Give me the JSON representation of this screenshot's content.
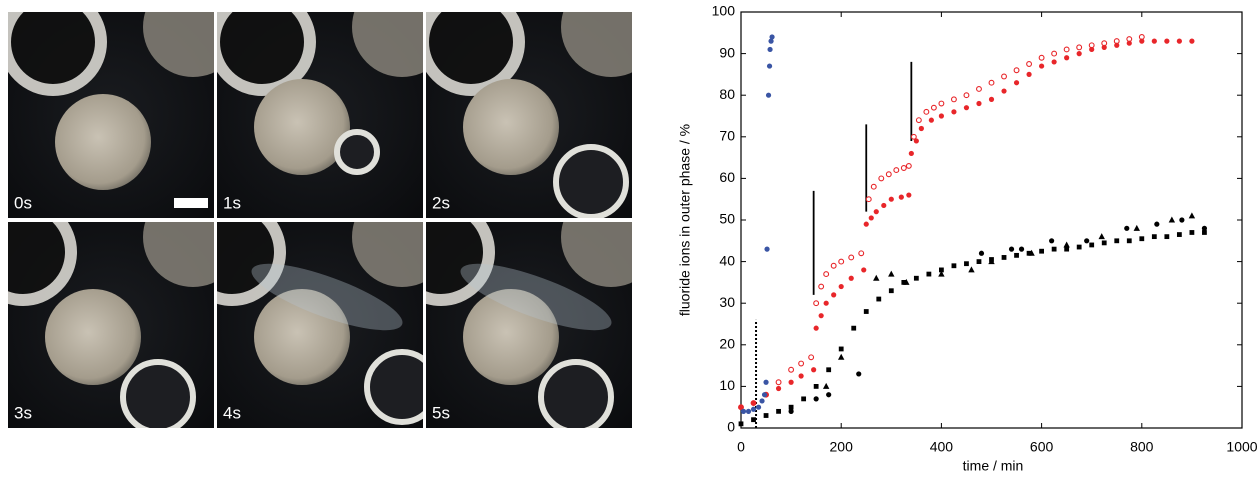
{
  "panels": [
    "0s",
    "1s",
    "2s",
    "3s",
    "4s",
    "5s"
  ],
  "chart_data": {
    "type": "scatter",
    "xlabel": "time / min",
    "ylabel": "fluoride ions in outer phase / %",
    "xlim": [
      0,
      1000
    ],
    "xticks": [
      0,
      200,
      400,
      600,
      800,
      1000
    ],
    "ylim": [
      0,
      100
    ],
    "yticks": [
      0,
      10,
      20,
      30,
      40,
      50,
      60,
      70,
      80,
      90,
      100
    ],
    "series": [
      {
        "color": "#e8262a",
        "marker": "circle-open",
        "x": [
          0,
          25,
          50,
          75,
          100,
          120,
          140,
          150,
          160,
          170,
          185,
          200,
          220,
          240,
          255,
          265,
          280,
          295,
          310,
          325,
          335,
          345,
          355,
          370,
          385,
          400,
          425,
          450,
          475,
          500,
          525,
          550,
          575,
          600,
          625,
          650,
          675,
          700,
          725,
          750,
          775,
          800
        ],
        "values": [
          5,
          6,
          8,
          11,
          14,
          15.5,
          17,
          30,
          34,
          37,
          39,
          40,
          41,
          42,
          55,
          58,
          60,
          61,
          62,
          62.5,
          63,
          70,
          74,
          76,
          77,
          78,
          79,
          80,
          81.5,
          83,
          84.5,
          86,
          87.5,
          89,
          90,
          91,
          91.5,
          92,
          92.5,
          93,
          93.5,
          94
        ]
      },
      {
        "color": "#e8262a",
        "marker": "circle-filled",
        "x": [
          0,
          25,
          50,
          75,
          100,
          120,
          145,
          150,
          160,
          170,
          185,
          200,
          220,
          245,
          250,
          260,
          270,
          285,
          300,
          320,
          335,
          340,
          350,
          360,
          380,
          400,
          425,
          450,
          475,
          500,
          525,
          550,
          575,
          600,
          625,
          650,
          675,
          700,
          725,
          750,
          775,
          800,
          825,
          850,
          875,
          900
        ],
        "values": [
          5,
          6,
          8,
          9.5,
          11,
          12.5,
          14,
          24,
          27,
          30,
          32,
          34,
          36,
          38,
          49,
          50.5,
          52,
          53.5,
          55,
          55.5,
          56,
          66,
          69,
          72,
          74,
          75,
          76,
          77,
          78,
          79,
          81,
          83,
          85,
          87,
          88,
          89,
          90,
          91,
          91.5,
          92,
          92.5,
          93,
          93,
          93,
          93,
          93
        ]
      },
      {
        "color": "#000000",
        "marker": "square",
        "x": [
          0,
          25,
          50,
          75,
          100,
          125,
          150,
          175,
          200,
          225,
          250,
          275,
          300,
          325,
          350,
          375,
          400,
          425,
          450,
          475,
          500,
          525,
          550,
          575,
          600,
          625,
          650,
          675,
          700,
          725,
          750,
          775,
          800,
          825,
          850,
          875,
          900,
          925
        ],
        "values": [
          1,
          2,
          3,
          4,
          5,
          7,
          10,
          14,
          19,
          24,
          28,
          31,
          33,
          35,
          36,
          37,
          38,
          39,
          39.5,
          40,
          40.5,
          41,
          41.5,
          42,
          42.5,
          43,
          43,
          43.5,
          44,
          44.5,
          45,
          45,
          45.5,
          46,
          46,
          46.5,
          47,
          47
        ]
      },
      {
        "color": "#000000",
        "marker": "circle-filled",
        "x": [
          100,
          150,
          175,
          235,
          480,
          540,
          560,
          620,
          690,
          770,
          830,
          880,
          925
        ],
        "values": [
          4,
          7,
          8,
          13,
          42,
          43,
          43,
          45,
          45,
          48,
          49,
          50,
          48
        ]
      },
      {
        "color": "#000000",
        "marker": "triangle",
        "x": [
          170,
          200,
          270,
          300,
          330,
          400,
          460,
          500,
          580,
          650,
          720,
          790,
          860,
          900
        ],
        "values": [
          10,
          17,
          36,
          37,
          35,
          37,
          38,
          40,
          42,
          44,
          46,
          48,
          50,
          51
        ]
      },
      {
        "color": "#3a55a4",
        "marker": "circle-filled",
        "x": [
          5,
          15,
          25,
          35,
          42,
          47,
          50,
          52,
          55,
          57,
          58,
          60,
          62
        ],
        "values": [
          4,
          4,
          4.5,
          5,
          6.5,
          8,
          11,
          43,
          80,
          87,
          91,
          93,
          94
        ]
      }
    ],
    "event_lines": [
      {
        "x": 30,
        "ymin": 0,
        "ymax": 26,
        "style": "dotted"
      },
      {
        "x": 145,
        "ymin": 32,
        "ymax": 57,
        "style": "solid"
      },
      {
        "x": 250,
        "ymin": 52,
        "ymax": 73,
        "style": "solid"
      },
      {
        "x": 340,
        "ymin": 69,
        "ymax": 88,
        "style": "solid"
      }
    ]
  }
}
